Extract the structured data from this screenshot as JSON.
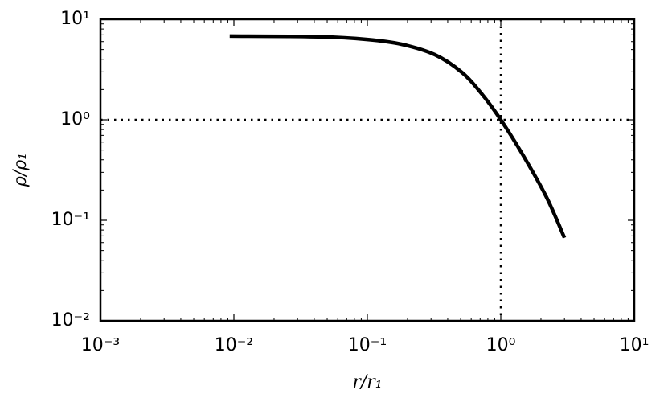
{
  "chart_data": {
    "type": "line",
    "x_label": "r/r₁",
    "y_label": "ρ/ρ₁",
    "x_log": true,
    "y_log": true,
    "xlim": [
      0.001,
      10
    ],
    "ylim": [
      0.01,
      10
    ],
    "xticks": [
      {
        "value": 0.001,
        "label": "10⁻³"
      },
      {
        "value": 0.01,
        "label": "10⁻²"
      },
      {
        "value": 0.1,
        "label": "10⁻¹"
      },
      {
        "value": 1,
        "label": "10⁰"
      },
      {
        "value": 10,
        "label": "10¹"
      }
    ],
    "yticks": [
      {
        "value": 0.01,
        "label": "10⁻²"
      },
      {
        "value": 0.1,
        "label": "10⁻¹"
      },
      {
        "value": 1,
        "label": "10⁰"
      },
      {
        "value": 10,
        "label": "10¹"
      }
    ],
    "minor_ticks": true,
    "reference_lines": {
      "x": 1,
      "y": 1
    },
    "color": "#000000",
    "x": [
      0.0093,
      0.045,
      0.1,
      0.18,
      0.32,
      0.51,
      0.73,
      1,
      1.46,
      2.2,
      3
    ],
    "values": [
      6.8,
      6.7,
      6.3,
      5.65,
      4.45,
      2.97,
      1.77,
      1,
      0.45,
      0.17,
      0.067
    ]
  }
}
